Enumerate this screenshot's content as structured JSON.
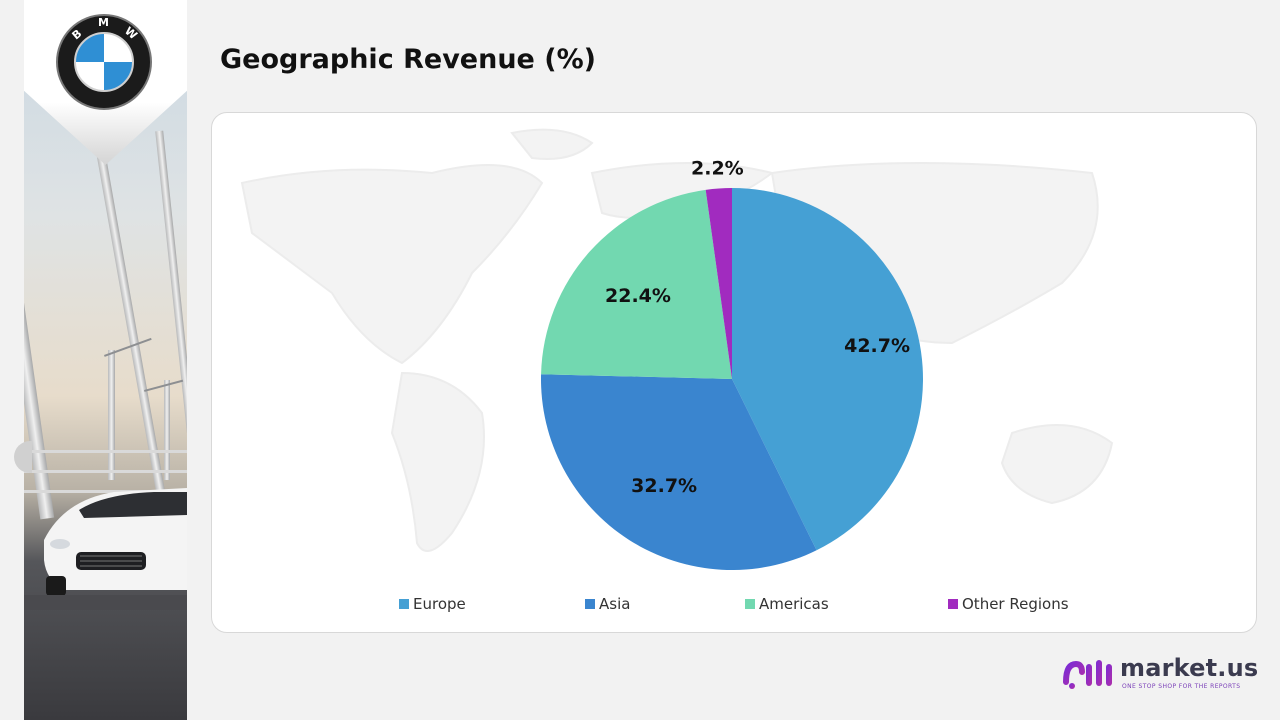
{
  "title": "Geographic Revenue (%)",
  "logo": {
    "letters": [
      "B",
      "M",
      "W"
    ]
  },
  "chart_data": {
    "type": "pie",
    "title": "Geographic Revenue (%)",
    "categories": [
      "Europe",
      "Asia",
      "Americas",
      "Other Regions"
    ],
    "values": [
      42.7,
      32.7,
      22.4,
      2.2
    ],
    "labels": [
      "42.7%",
      "32.7%",
      "22.4%",
      "2.2%"
    ],
    "colors": [
      "#45a0d4",
      "#3a85cf",
      "#72d8b0",
      "#a12bbf"
    ],
    "legend_position": "bottom"
  },
  "brand": {
    "name": "market.us",
    "tagline": "ONE STOP SHOP FOR THE REPORTS"
  }
}
